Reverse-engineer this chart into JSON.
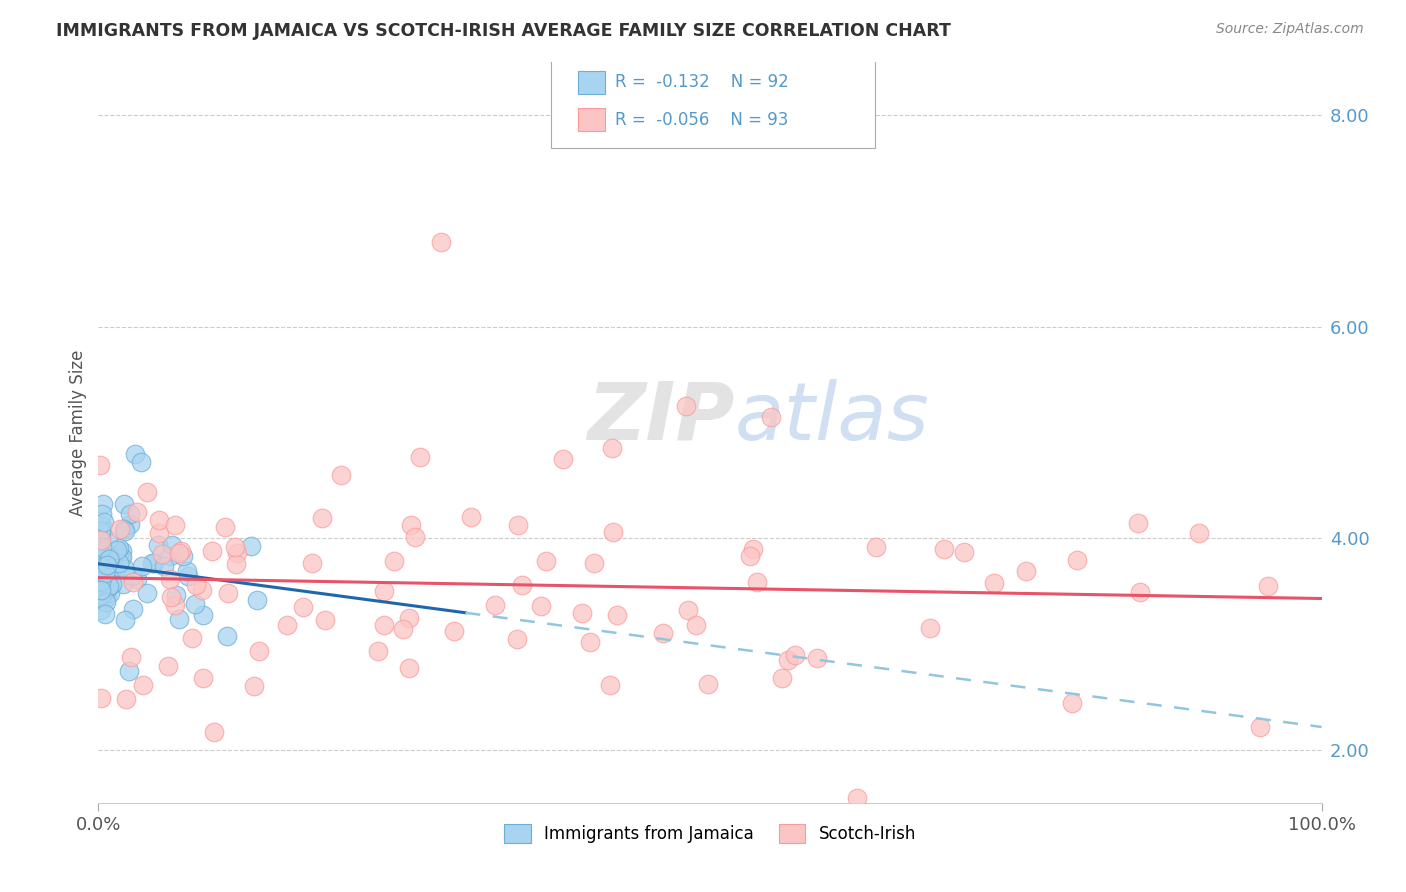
{
  "title": "IMMIGRANTS FROM JAMAICA VS SCOTCH-IRISH AVERAGE FAMILY SIZE CORRELATION CHART",
  "source": "Source: ZipAtlas.com",
  "ylabel": "Average Family Size",
  "legend_label1": "Immigrants from Jamaica",
  "legend_label2": "Scotch-Irish",
  "r1": -0.132,
  "n1": 92,
  "r2": -0.056,
  "n2": 93,
  "color1": "#6baed6",
  "color2": "#fb9a99",
  "color1_fill": "#a8d4f0",
  "color2_fill": "#fcc5c5",
  "line1_color": "#2166ac",
  "line1_dash_color": "#92c5de",
  "line2_color": "#e8536a",
  "watermark_zip": "ZIP",
  "watermark_atlas": "atlas",
  "xlim": [
    0.0,
    1.0
  ],
  "ylim": [
    1.5,
    8.5
  ],
  "yticks": [
    2.0,
    4.0,
    6.0,
    8.0
  ],
  "xtick_labels": [
    "0.0%",
    "100.0%"
  ],
  "ytick_labels": [
    "2.00",
    "4.00",
    "6.00",
    "8.00"
  ],
  "background_color": "#ffffff",
  "grid_color": "#cccccc",
  "title_color": "#333333",
  "source_color": "#888888",
  "axis_color": "#5599cc",
  "seed": 42
}
